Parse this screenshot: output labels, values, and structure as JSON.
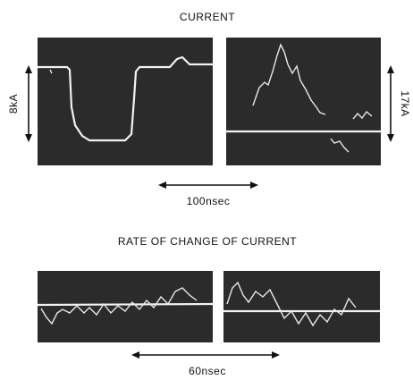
{
  "figure": {
    "top": {
      "title": "CURRENT",
      "left_scale": "8kA",
      "right_scale": "17kA",
      "time_scale": "100nsec"
    },
    "bottom": {
      "title": "RATE OF CHANGE OF CURRENT",
      "time_scale": "60nsec"
    }
  }
}
